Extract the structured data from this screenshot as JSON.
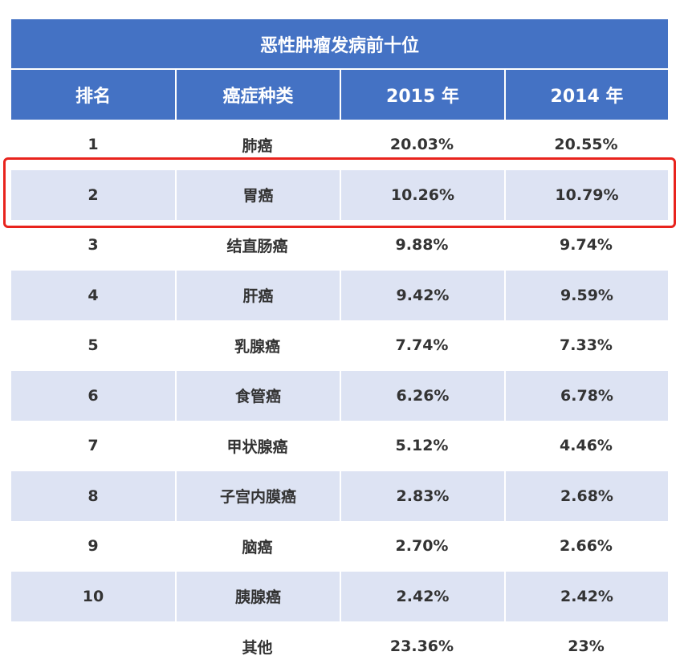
{
  "table": {
    "title": "恶性肿瘤发病前十位",
    "headers": [
      "排名",
      "癌症种类",
      "2015 年",
      "2014 年"
    ],
    "rows": [
      {
        "rank": "1",
        "type": "肺癌",
        "y2015": "20.03%",
        "y2014": "20.55%"
      },
      {
        "rank": "2",
        "type": "胃癌",
        "y2015": "10.26%",
        "y2014": "10.79%"
      },
      {
        "rank": "3",
        "type": "结直肠癌",
        "y2015": "9.88%",
        "y2014": "9.74%"
      },
      {
        "rank": "4",
        "type": "肝癌",
        "y2015": "9.42%",
        "y2014": "9.59%"
      },
      {
        "rank": "5",
        "type": "乳腺癌",
        "y2015": "7.74%",
        "y2014": "7.33%"
      },
      {
        "rank": "6",
        "type": "食管癌",
        "y2015": "6.26%",
        "y2014": "6.78%"
      },
      {
        "rank": "7",
        "type": "甲状腺癌",
        "y2015": "5.12%",
        "y2014": "4.46%"
      },
      {
        "rank": "8",
        "type": "子宫内膜癌",
        "y2015": "2.83%",
        "y2014": "2.68%"
      },
      {
        "rank": "9",
        "type": "脑癌",
        "y2015": "2.70%",
        "y2014": "2.66%"
      },
      {
        "rank": "10",
        "type": "胰腺癌",
        "y2015": "2.42%",
        "y2014": "2.42%"
      },
      {
        "rank": "",
        "type": "其他",
        "y2015": "23.36%",
        "y2014": "23%"
      }
    ]
  },
  "colors": {
    "header_bg": "#4472c4",
    "stripe_bg": "#dde3f3",
    "highlight_border": "#e8231d"
  }
}
